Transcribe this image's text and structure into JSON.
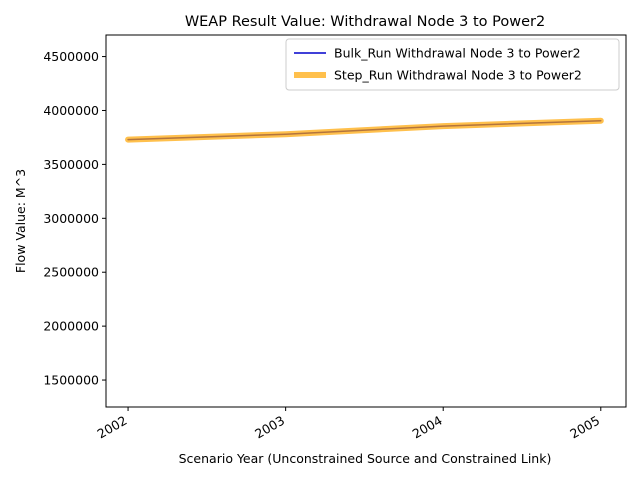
{
  "chart_data": {
    "type": "line",
    "title": "WEAP Result Value: Withdrawal Node 3 to Power2",
    "xlabel": "Scenario Year (Unconstrained Source and Constrained Link)",
    "ylabel": "Flow Value: M^3",
    "x": [
      2002,
      2003,
      2004,
      2005
    ],
    "xlim": [
      2001.86,
      2005.16
    ],
    "ylim": [
      1250000,
      4700000
    ],
    "x_ticks": [
      "2002",
      "2003",
      "2004",
      "2005"
    ],
    "y_ticks": [
      "1500000",
      "2000000",
      "2500000",
      "3000000",
      "3500000",
      "4000000",
      "4500000"
    ],
    "y_tick_values": [
      1500000,
      2000000,
      2500000,
      3000000,
      3500000,
      4000000,
      4500000
    ],
    "grid": false,
    "legend_position": "top-right",
    "series": [
      {
        "name": "Bulk_Run Withdrawal Node 3 to Power2",
        "values": [
          3730000,
          3780000,
          3855000,
          3905000
        ],
        "color": "#0000cc"
      },
      {
        "name": "Step_Run Withdrawal Node 3 to Power2",
        "values": [
          3730000,
          3780000,
          3855000,
          3905000
        ],
        "color": "#ffa500"
      }
    ]
  }
}
